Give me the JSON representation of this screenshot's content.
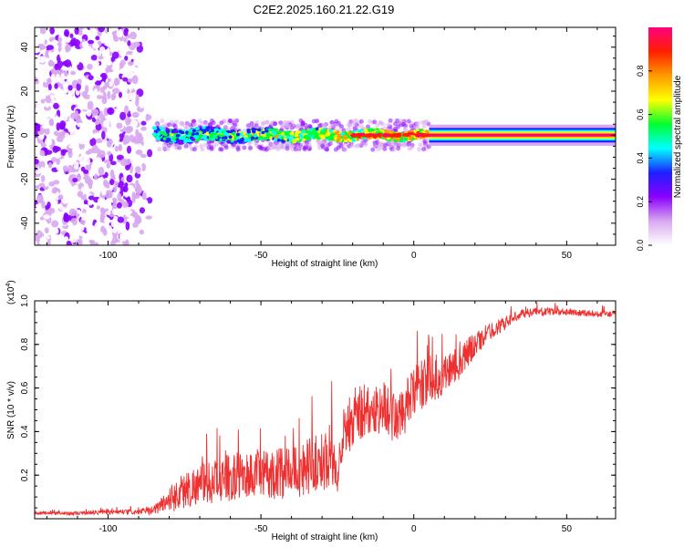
{
  "figure_title": "C2E2.2025.160.21.22.G19",
  "chart_data": [
    {
      "type": "heatmap",
      "title": "",
      "xlabel": "Height of straight line (km)",
      "ylabel": "Frequency (Hz)",
      "xlim": [
        -124,
        66
      ],
      "ylim": [
        -50,
        49
      ],
      "x_ticks": [
        -100,
        -50,
        0,
        50
      ],
      "y_ticks": [
        -40,
        -20,
        0,
        20,
        40
      ],
      "grid": false,
      "colorbar": {
        "label": "Normalized spectral amplitude",
        "range": [
          0,
          1
        ],
        "ticks": [
          0.0,
          0.2,
          0.4,
          0.6,
          0.8
        ],
        "colors": [
          "#ffffff",
          "#d8a8f0",
          "#8a00ff",
          "#1e20ff",
          "#00ffff",
          "#00ff30",
          "#ffff00",
          "#ff9a00",
          "#ff2000",
          "#ff0080"
        ]
      },
      "regions": [
        {
          "x_range": [
            -124,
            -88
          ],
          "freq_range": [
            -50,
            49
          ],
          "amplitude": "low, scattered"
        },
        {
          "x_range": [
            -85,
            5
          ],
          "center_freq_hz": 0,
          "bandwidth_hz": 6,
          "amplitude": "medium to high"
        },
        {
          "x_range": [
            5,
            66
          ],
          "center_freq_hz": 0,
          "bandwidth_hz": 3,
          "amplitude": "high"
        }
      ]
    },
    {
      "type": "line",
      "title": "",
      "xlabel": "Height of straight line (km)",
      "ylabel": "SNR (10 * v/v)",
      "y_multiplier": "(x10^4)",
      "xlim": [
        -124,
        66
      ],
      "ylim": [
        0,
        1.0
      ],
      "x_ticks": [
        -100,
        -50,
        0,
        50
      ],
      "y_ticks": [
        0.2,
        0.4,
        0.6,
        0.8,
        1.0
      ],
      "grid": false,
      "series": [
        {
          "color": "#ee3030",
          "x": [
            -124,
            -110,
            -100,
            -90,
            -85,
            -80,
            -75,
            -70,
            -65,
            -60,
            -55,
            -50,
            -45,
            -40,
            -35,
            -30,
            -27,
            -25,
            -23,
            -20,
            -17,
            -15,
            -10,
            -5,
            0,
            5,
            10,
            15,
            20,
            25,
            30,
            35,
            40,
            50,
            60,
            66
          ],
          "y": [
            0.025,
            0.025,
            0.03,
            0.03,
            0.04,
            0.09,
            0.13,
            0.16,
            0.17,
            0.19,
            0.2,
            0.2,
            0.21,
            0.21,
            0.24,
            0.26,
            0.3,
            0.16,
            0.4,
            0.45,
            0.5,
            0.48,
            0.52,
            0.45,
            0.58,
            0.64,
            0.66,
            0.72,
            0.8,
            0.86,
            0.9,
            0.94,
            0.95,
            0.95,
            0.94,
            0.94
          ],
          "noise_amplitude": [
            0.008,
            0.008,
            0.01,
            0.012,
            0.02,
            0.06,
            0.09,
            0.09,
            0.1,
            0.11,
            0.11,
            0.11,
            0.12,
            0.12,
            0.13,
            0.14,
            0.14,
            0.07,
            0.13,
            0.14,
            0.14,
            0.12,
            0.12,
            0.12,
            0.12,
            0.11,
            0.1,
            0.08,
            0.06,
            0.04,
            0.03,
            0.02,
            0.02,
            0.015,
            0.015,
            0.015
          ]
        }
      ]
    }
  ]
}
